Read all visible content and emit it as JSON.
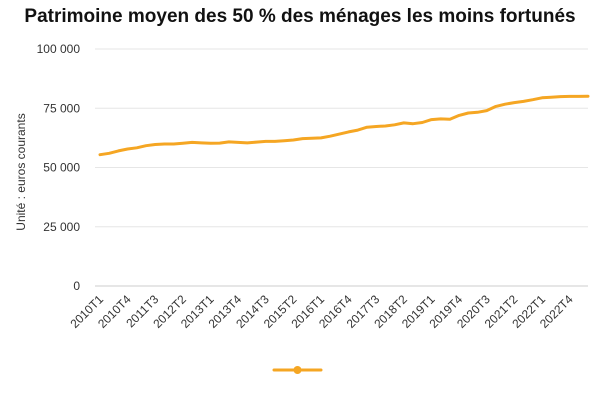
{
  "chart_data": {
    "type": "line",
    "title": "Patrimoine moyen des 50 % des ménages les moins fortunés",
    "ylabel": "Unité : euros courants",
    "xlabel": "",
    "ylim": [
      0,
      100000
    ],
    "yticks": [
      {
        "value": 0,
        "label": "0"
      },
      {
        "value": 25000,
        "label": "25 000"
      },
      {
        "value": 50000,
        "label": "50 000"
      },
      {
        "value": 75000,
        "label": "75 000"
      },
      {
        "value": 100000,
        "label": "100 000"
      }
    ],
    "grid": true,
    "legend_position": "bottom",
    "x": [
      "2010T1",
      "2010T2",
      "2010T3",
      "2010T4",
      "2011T1",
      "2011T2",
      "2011T3",
      "2011T4",
      "2012T1",
      "2012T2",
      "2012T3",
      "2012T4",
      "2013T1",
      "2013T2",
      "2013T3",
      "2013T4",
      "2014T1",
      "2014T2",
      "2014T3",
      "2014T4",
      "2015T1",
      "2015T2",
      "2015T3",
      "2015T4",
      "2016T1",
      "2016T2",
      "2016T3",
      "2016T4",
      "2017T1",
      "2017T2",
      "2017T3",
      "2017T4",
      "2018T1",
      "2018T2",
      "2018T3",
      "2018T4",
      "2019T1",
      "2019T2",
      "2019T3",
      "2019T4",
      "2020T1",
      "2020T2",
      "2020T3",
      "2020T4",
      "2021T1",
      "2021T2",
      "2021T3",
      "2021T4",
      "2022T1",
      "2022T2",
      "2022T3",
      "2022T4",
      "2023T1",
      "2023T2"
    ],
    "xtick_labels": [
      "2010T1",
      "2010T4",
      "2011T3",
      "2012T2",
      "2013T1",
      "2013T4",
      "2014T3",
      "2015T2",
      "2016T1",
      "2016T4",
      "2017T3",
      "2018T2",
      "2019T1",
      "2019T4",
      "2020T3",
      "2021T2",
      "2022T1",
      "2022T4"
    ],
    "series": [
      {
        "name": "",
        "color": "#f5a623",
        "values": [
          55400,
          56000,
          57000,
          57800,
          58300,
          59200,
          59700,
          59900,
          59900,
          60200,
          60600,
          60400,
          60200,
          60300,
          60800,
          60600,
          60400,
          60700,
          61000,
          61000,
          61300,
          61600,
          62200,
          62300,
          62500,
          63200,
          64100,
          65000,
          65800,
          67000,
          67300,
          67500,
          68000,
          68800,
          68500,
          69000,
          70200,
          70500,
          70400,
          72000,
          73000,
          73300,
          74000,
          75800,
          76700,
          77400,
          77900,
          78600,
          79400,
          79600,
          79900,
          80000,
          80000,
          80100
        ]
      }
    ]
  }
}
